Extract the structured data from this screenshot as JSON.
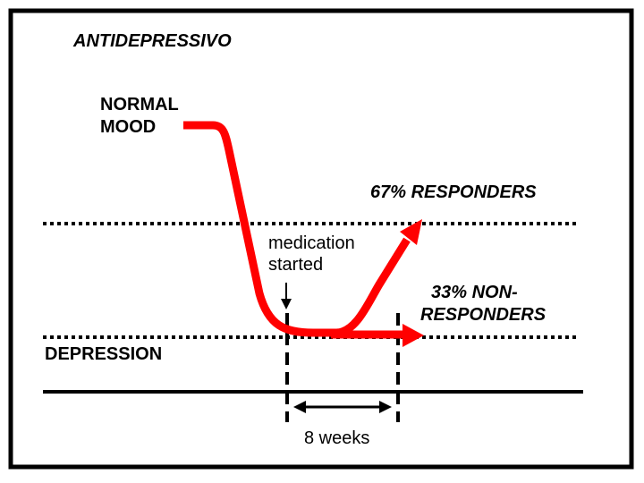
{
  "title": "ANTIDEPRESSIVO",
  "labels": {
    "normal_mood_line1": "NORMAL",
    "normal_mood_line2": "MOOD",
    "responders": "67% RESPONDERS",
    "non_responders_line1": "33% NON-",
    "non_responders_line2": "RESPONDERS",
    "medication_line1": "medication",
    "medication_line2": "started",
    "depression": "DEPRESSION",
    "duration": "8 weeks"
  },
  "colors": {
    "curve": "#ff0000",
    "lines": "#000000",
    "border": "#000000"
  }
}
